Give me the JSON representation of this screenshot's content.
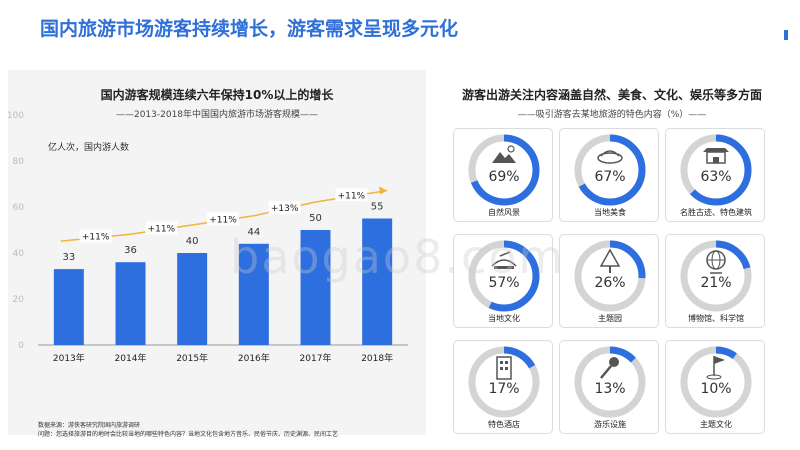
{
  "page": {
    "title": "国内旅游市场游客持续增长，游客需求呈现多元化",
    "watermark": "baogao8.com"
  },
  "left_panel": {
    "title": "国内游客规模连续六年保持10%以上的增长",
    "subtitle": "2013-2018年中国国内旅游市场游客规模",
    "unit": "亿人次，国内游人数",
    "source_line1": "数据来源：游侠客研究院国内旅游调研",
    "source_line2": "问题：您选择旅游目的地时会比较当地的哪些特色内容？当地文化包含地方音乐、民俗节庆、历史渊源、民间工艺"
  },
  "right_panel": {
    "title": "游客出游关注内容涵盖自然、美食、文化、娱乐等多方面",
    "subtitle": "吸引游客去某地旅游的特色内容（%）"
  },
  "chart_data": [
    {
      "type": "bar",
      "categories": [
        "2013年",
        "2014年",
        "2015年",
        "2016年",
        "2017年",
        "2018年"
      ],
      "values": [
        33,
        36,
        40,
        44,
        50,
        55
      ],
      "growth_labels": [
        "+11%",
        "+11%",
        "+11%",
        "+13%",
        "+11%"
      ],
      "y_ticks": [
        "0",
        "20",
        "40",
        "60",
        "80",
        "100"
      ],
      "ylim": [
        0,
        100
      ],
      "title": "国内游客规模连续六年保持10%以上的增长",
      "colors": {
        "bar": "#2e6fe0",
        "trend": "#f0b43c"
      }
    },
    {
      "type": "pie",
      "items": [
        {
          "label": "自然风景",
          "value": 69,
          "pct_text": "69%",
          "icon": "mountain-sun-icon"
        },
        {
          "label": "当地美食",
          "value": 67,
          "pct_text": "67%",
          "icon": "food-dish-icon"
        },
        {
          "label": "名胜古迹、特色建筑",
          "value": 63,
          "pct_text": "63%",
          "icon": "pagoda-icon"
        },
        {
          "label": "当地文化",
          "value": 57,
          "pct_text": "57%",
          "icon": "culture-icon"
        },
        {
          "label": "主题园",
          "value": 26,
          "pct_text": "26%",
          "icon": "tree-icon"
        },
        {
          "label": "博物馆、科学馆",
          "value": 21,
          "pct_text": "21%",
          "icon": "globe-icon"
        },
        {
          "label": "特色酒店",
          "value": 17,
          "pct_text": "17%",
          "icon": "hotel-building-icon"
        },
        {
          "label": "游乐设施",
          "value": 13,
          "pct_text": "13%",
          "icon": "microphone-icon"
        },
        {
          "label": "主题文化",
          "value": 10,
          "pct_text": "10%",
          "icon": "golf-flag-icon"
        }
      ],
      "colors": {
        "fill": "#2e6fe0",
        "track": "#d4d4d4"
      }
    }
  ]
}
